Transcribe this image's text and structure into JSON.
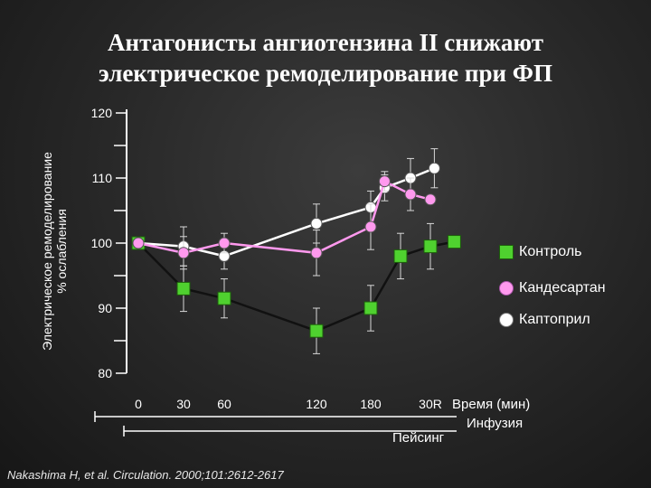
{
  "slide": {
    "title_lines": [
      "Антагонисты ангиотензина II снижают",
      "электрическое ремоделирование при ФП"
    ],
    "ylabel_lines": [
      "Электрическое ремоделирование",
      "% ослабления"
    ],
    "citation": "Nakashima H, et al. Circulation. 2000;101:2612-2617",
    "legend": [
      "Контроль",
      "Кандесартан",
      "Каптоприл"
    ],
    "phase_pacing": "Пейсинг",
    "phase_infusion": "Инфузия"
  },
  "chart_data": {
    "type": "line",
    "xlabel": "Время (мин)",
    "x_tick_labels": [
      "0",
      "30",
      "60",
      "120",
      "180",
      "30R"
    ],
    "y_tick_labels": [
      "120",
      "110",
      "100",
      "90",
      "80"
    ],
    "ylim": [
      80,
      120
    ],
    "series": [
      {
        "name": "Контроль",
        "marker": "square",
        "color": "#4fd12f",
        "line_color": "#111111",
        "points": [
          [
            0,
            100
          ],
          [
            30,
            93
          ],
          [
            60,
            91.5
          ],
          [
            120,
            86.5
          ],
          [
            180,
            90
          ],
          [
            195,
            98
          ],
          [
            210,
            99.5
          ],
          [
            222,
            100.2
          ]
        ],
        "errors": [
          0,
          3.5,
          3,
          3.5,
          3.5,
          3.5,
          3.5,
          0
        ]
      },
      {
        "name": "Кандесартан",
        "marker": "circle",
        "color": "#ff99ee",
        "line_color": "#ff99ee",
        "points": [
          [
            0,
            100
          ],
          [
            30,
            98.5
          ],
          [
            60,
            100
          ],
          [
            120,
            98.5
          ],
          [
            180,
            102.5
          ],
          [
            187,
            109.5
          ],
          [
            200,
            107.5
          ],
          [
            210,
            106.7
          ]
        ],
        "errors": [
          0,
          2.5,
          1.5,
          3.5,
          3.5,
          1.5,
          2.5,
          0
        ]
      },
      {
        "name": "Каптоприл",
        "marker": "circle",
        "color": "#ffffff",
        "line_color": "#ffffff",
        "points": [
          [
            0,
            100
          ],
          [
            30,
            99.5
          ],
          [
            60,
            98
          ],
          [
            120,
            103
          ],
          [
            180,
            105.5
          ],
          [
            187,
            108.5
          ],
          [
            200,
            110
          ],
          [
            212,
            111.5
          ]
        ],
        "errors": [
          0,
          3,
          2,
          3,
          2.5,
          2,
          3,
          3
        ]
      }
    ]
  }
}
